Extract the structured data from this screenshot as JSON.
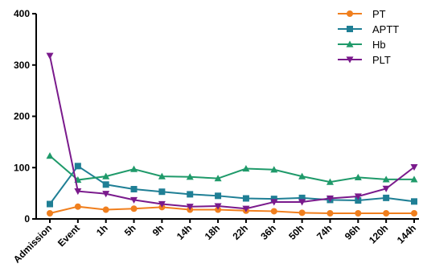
{
  "chart_data": {
    "type": "line",
    "title": "",
    "xlabel": "",
    "ylabel": "",
    "categories": [
      "Admission",
      "Event",
      "1h",
      "5h",
      "9h",
      "14h",
      "18h",
      "22h",
      "36h",
      "50h",
      "74h",
      "96h",
      "120h",
      "144h"
    ],
    "ylim": [
      0,
      400
    ],
    "yticks": [
      0,
      100,
      200,
      300,
      400
    ],
    "grid": false,
    "legend_position": "top-right",
    "series": [
      {
        "name": "PT",
        "color": "#f07f1e",
        "marker": "circle",
        "values": [
          11,
          24,
          18,
          20,
          23,
          18,
          18,
          16,
          15,
          12,
          11,
          11,
          11,
          11
        ]
      },
      {
        "name": "APTT",
        "color": "#1f7f95",
        "marker": "square",
        "values": [
          29,
          103,
          67,
          58,
          53,
          48,
          45,
          40,
          39,
          41,
          37,
          36,
          41,
          34
        ]
      },
      {
        "name": "Hb",
        "color": "#1f9a6a",
        "marker": "triangle-up",
        "values": [
          123,
          76,
          83,
          97,
          83,
          82,
          79,
          98,
          96,
          83,
          72,
          81,
          77,
          77
        ]
      },
      {
        "name": "PLT",
        "color": "#7a1a8c",
        "marker": "triangle-down",
        "values": [
          318,
          54,
          49,
          37,
          29,
          24,
          25,
          20,
          33,
          33,
          40,
          44,
          59,
          101
        ]
      }
    ]
  }
}
